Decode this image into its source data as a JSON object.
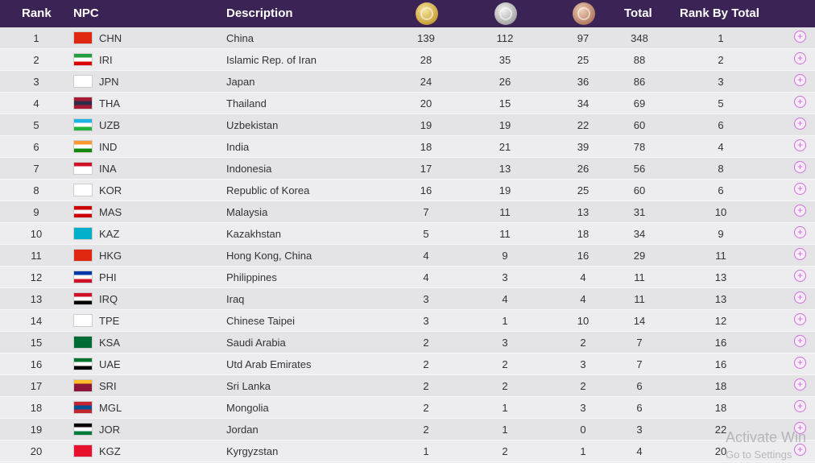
{
  "header": {
    "rank": "Rank",
    "npc": "NPC",
    "description": "Description",
    "gold_icon": "gold-medal-icon",
    "silver_icon": "silver-medal-icon",
    "bronze_icon": "bronze-medal-icon",
    "total": "Total",
    "rank_by_total": "Rank By Total"
  },
  "colors": {
    "header_bg": "#3b2455",
    "expand_icon": "#d36be0"
  },
  "rows": [
    {
      "rank": "1",
      "code": "CHN",
      "desc": "China",
      "gold": "139",
      "silver": "112",
      "bronze": "97",
      "total": "348",
      "rbt": "1",
      "flag": [
        "#de2910",
        "#de2910",
        "#de2910"
      ]
    },
    {
      "rank": "2",
      "code": "IRI",
      "desc": "Islamic Rep. of Iran",
      "gold": "28",
      "silver": "35",
      "bronze": "25",
      "total": "88",
      "rbt": "2",
      "flag": [
        "#239f40",
        "#ffffff",
        "#da0000"
      ]
    },
    {
      "rank": "3",
      "code": "JPN",
      "desc": "Japan",
      "gold": "24",
      "silver": "26",
      "bronze": "36",
      "total": "86",
      "rbt": "3",
      "flag": [
        "#ffffff",
        "#ffffff",
        "#ffffff"
      ]
    },
    {
      "rank": "4",
      "code": "THA",
      "desc": "Thailand",
      "gold": "20",
      "silver": "15",
      "bronze": "34",
      "total": "69",
      "rbt": "5",
      "flag": [
        "#a51931",
        "#2d2a4a",
        "#a51931"
      ]
    },
    {
      "rank": "5",
      "code": "UZB",
      "desc": "Uzbekistan",
      "gold": "19",
      "silver": "19",
      "bronze": "22",
      "total": "60",
      "rbt": "6",
      "flag": [
        "#1eb3e5",
        "#ffffff",
        "#1eb53a"
      ]
    },
    {
      "rank": "6",
      "code": "IND",
      "desc": "India",
      "gold": "18",
      "silver": "21",
      "bronze": "39",
      "total": "78",
      "rbt": "4",
      "flag": [
        "#ff9933",
        "#ffffff",
        "#138808"
      ]
    },
    {
      "rank": "7",
      "code": "INA",
      "desc": "Indonesia",
      "gold": "17",
      "silver": "13",
      "bronze": "26",
      "total": "56",
      "rbt": "8",
      "flag": [
        "#ce1126",
        "#ffffff",
        "#ffffff"
      ]
    },
    {
      "rank": "8",
      "code": "KOR",
      "desc": "Republic of Korea",
      "gold": "16",
      "silver": "19",
      "bronze": "25",
      "total": "60",
      "rbt": "6",
      "flag": [
        "#ffffff",
        "#ffffff",
        "#ffffff"
      ]
    },
    {
      "rank": "9",
      "code": "MAS",
      "desc": "Malaysia",
      "gold": "7",
      "silver": "11",
      "bronze": "13",
      "total": "31",
      "rbt": "10",
      "flag": [
        "#cc0001",
        "#ffffff",
        "#cc0001"
      ]
    },
    {
      "rank": "10",
      "code": "KAZ",
      "desc": "Kazakhstan",
      "gold": "5",
      "silver": "11",
      "bronze": "18",
      "total": "34",
      "rbt": "9",
      "flag": [
        "#00afca",
        "#00afca",
        "#00afca"
      ]
    },
    {
      "rank": "11",
      "code": "HKG",
      "desc": "Hong Kong, China",
      "gold": "4",
      "silver": "9",
      "bronze": "16",
      "total": "29",
      "rbt": "11",
      "flag": [
        "#de2910",
        "#de2910",
        "#de2910"
      ]
    },
    {
      "rank": "12",
      "code": "PHI",
      "desc": "Philippines",
      "gold": "4",
      "silver": "3",
      "bronze": "4",
      "total": "11",
      "rbt": "13",
      "flag": [
        "#0038a8",
        "#ffffff",
        "#ce1126"
      ]
    },
    {
      "rank": "13",
      "code": "IRQ",
      "desc": "Iraq",
      "gold": "3",
      "silver": "4",
      "bronze": "4",
      "total": "11",
      "rbt": "13",
      "flag": [
        "#ce1126",
        "#ffffff",
        "#000000"
      ]
    },
    {
      "rank": "14",
      "code": "TPE",
      "desc": "Chinese Taipei",
      "gold": "3",
      "silver": "1",
      "bronze": "10",
      "total": "14",
      "rbt": "12",
      "flag": [
        "#ffffff",
        "#ffffff",
        "#ffffff"
      ]
    },
    {
      "rank": "15",
      "code": "KSA",
      "desc": "Saudi Arabia",
      "gold": "2",
      "silver": "3",
      "bronze": "2",
      "total": "7",
      "rbt": "16",
      "flag": [
        "#006c35",
        "#006c35",
        "#006c35"
      ]
    },
    {
      "rank": "16",
      "code": "UAE",
      "desc": "Utd Arab Emirates",
      "gold": "2",
      "silver": "2",
      "bronze": "3",
      "total": "7",
      "rbt": "16",
      "flag": [
        "#00732f",
        "#ffffff",
        "#000000"
      ]
    },
    {
      "rank": "17",
      "code": "SRI",
      "desc": "Sri Lanka",
      "gold": "2",
      "silver": "2",
      "bronze": "2",
      "total": "6",
      "rbt": "18",
      "flag": [
        "#ffbe29",
        "#8d153a",
        "#8d153a"
      ]
    },
    {
      "rank": "18",
      "code": "MGL",
      "desc": "Mongolia",
      "gold": "2",
      "silver": "1",
      "bronze": "3",
      "total": "6",
      "rbt": "18",
      "flag": [
        "#c4272f",
        "#015197",
        "#c4272f"
      ]
    },
    {
      "rank": "19",
      "code": "JOR",
      "desc": "Jordan",
      "gold": "2",
      "silver": "1",
      "bronze": "0",
      "total": "3",
      "rbt": "22",
      "flag": [
        "#000000",
        "#ffffff",
        "#007a3d"
      ]
    },
    {
      "rank": "20",
      "code": "KGZ",
      "desc": "Kyrgyzstan",
      "gold": "1",
      "silver": "2",
      "bronze": "1",
      "total": "4",
      "rbt": "20",
      "flag": [
        "#e8112d",
        "#e8112d",
        "#e8112d"
      ]
    }
  ],
  "expand_icon": "plus-circle-icon",
  "watermark": {
    "line1": "Activate Win",
    "line2": "Go to Settings"
  }
}
